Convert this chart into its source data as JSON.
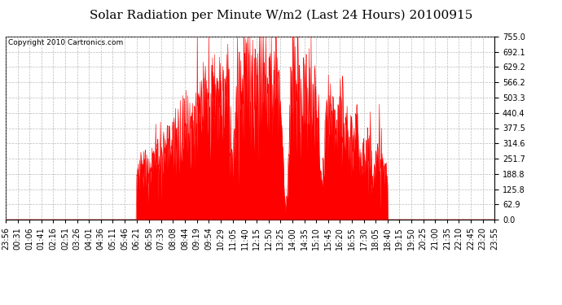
{
  "title": "Solar Radiation per Minute W/m2 (Last 24 Hours) 20100915",
  "copyright": "Copyright 2010 Cartronics.com",
  "y_ticks": [
    0.0,
    62.9,
    125.8,
    188.8,
    251.7,
    314.6,
    377.5,
    440.4,
    503.3,
    566.2,
    629.2,
    692.1,
    755.0
  ],
  "ylim": [
    0.0,
    755.0
  ],
  "fill_color": "#FF0000",
  "line_color": "#FF0000",
  "background_color": "#FFFFFF",
  "grid_color": "#AAAAAA",
  "dashed_line_color": "#FF0000",
  "x_labels": [
    "23:56",
    "00:31",
    "01:06",
    "01:41",
    "02:16",
    "02:51",
    "03:26",
    "04:01",
    "04:36",
    "05:11",
    "05:46",
    "06:21",
    "06:58",
    "07:33",
    "08:08",
    "08:44",
    "09:19",
    "09:54",
    "10:29",
    "11:05",
    "11:40",
    "12:15",
    "12:50",
    "13:25",
    "14:00",
    "14:35",
    "15:10",
    "15:45",
    "16:20",
    "16:55",
    "17:30",
    "18:05",
    "18:40",
    "19:15",
    "19:50",
    "20:25",
    "21:00",
    "21:35",
    "22:10",
    "22:45",
    "23:20",
    "23:55"
  ],
  "title_fontsize": 11,
  "copyright_fontsize": 6.5,
  "tick_fontsize": 7,
  "sunrise_idx": 385,
  "sunset_idx": 1124,
  "solar_noon_idx": 815
}
